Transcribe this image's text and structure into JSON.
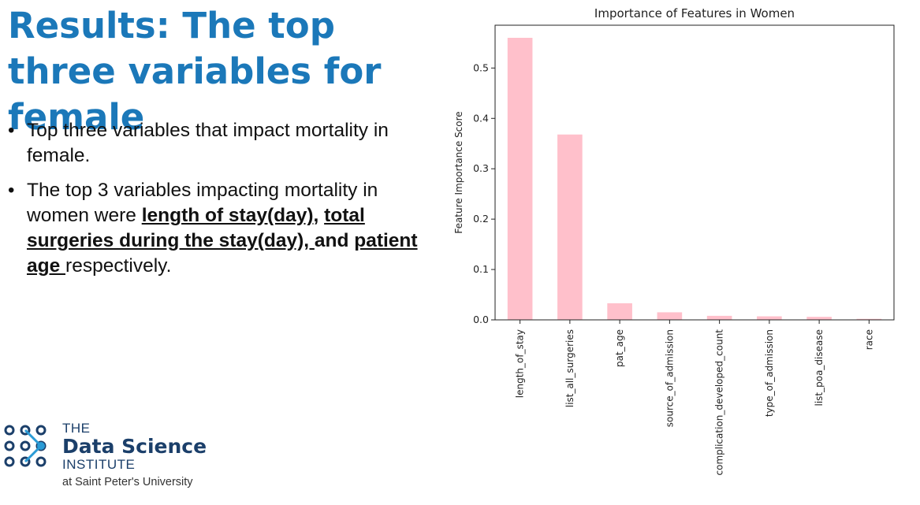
{
  "slide": {
    "title": "Results: The top three variables for female",
    "bullets": [
      {
        "parts": [
          {
            "text": "Top three variables that impact mortality in female.",
            "bold": false
          }
        ]
      },
      {
        "parts": [
          {
            "text": "The top 3 variables impacting mortality in women were ",
            "bold": false
          },
          {
            "text": "length of stay(day)",
            "bold": true
          },
          {
            "text": ", ",
            "bold": true,
            "plain": true
          },
          {
            "text": "total surgeries during the stay(day), ",
            "bold": true
          },
          {
            "text": "and ",
            "bold": true,
            "plain": true
          },
          {
            "text": "patient age ",
            "bold": true
          },
          {
            "text": "respectively.",
            "bold": false
          }
        ]
      }
    ]
  },
  "logo": {
    "line1": "THE",
    "line2": "Data Science",
    "line3": "INSTITUTE",
    "line4": "at Saint Peter's University",
    "color": "#1b3f6a"
  },
  "chart_data": {
    "type": "bar",
    "title": "Importance of Features in Women",
    "xlabel": "",
    "ylabel": "Feature Importance Score",
    "categories": [
      "length_of_stay",
      "list_all_surgeries",
      "pat_age",
      "source_of_admission",
      "complication_developed_count",
      "type_of_admission",
      "list_poa_disease",
      "race"
    ],
    "values": [
      0.56,
      0.368,
      0.033,
      0.015,
      0.008,
      0.007,
      0.006,
      0.002
    ],
    "ylim": [
      0,
      0.585
    ],
    "yticks": [
      0.0,
      0.1,
      0.2,
      0.3,
      0.4,
      0.5
    ],
    "ytick_labels": [
      "0.0",
      "0.1",
      "0.2",
      "0.3",
      "0.4",
      "0.5"
    ],
    "bar_color": "#ffc0cb",
    "grid": false,
    "legend": "none"
  }
}
